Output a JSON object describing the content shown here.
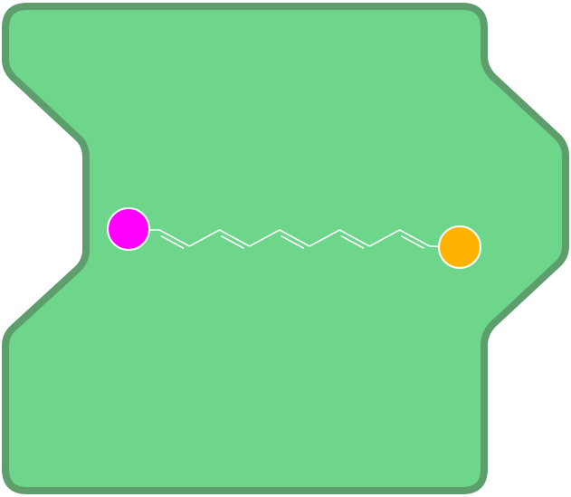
{
  "diagram": {
    "kind": "molecule-in-binding-tile",
    "colors": {
      "tile_fill": "#6dd68a",
      "tile_border": "#5e9e6c",
      "bond_line": "#ffffff",
      "left_bead": "#ff00ff",
      "right_bead": "#ffb300",
      "bead_outline": "#ffffff"
    },
    "chain": {
      "carbon_count": 12,
      "bond_pattern": [
        "single",
        "double",
        "single",
        "double",
        "single",
        "double",
        "single",
        "double",
        "single",
        "double",
        "single"
      ]
    },
    "beads": [
      {
        "name": "left-terminal",
        "color_key": "left_bead"
      },
      {
        "name": "right-terminal",
        "color_key": "right_bead"
      }
    ]
  }
}
